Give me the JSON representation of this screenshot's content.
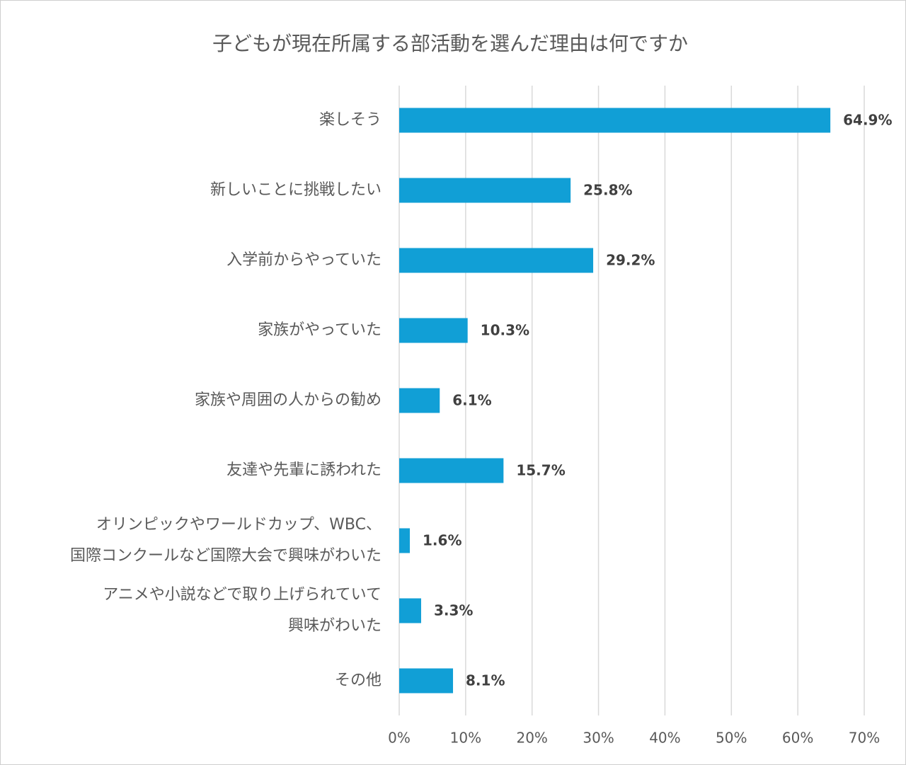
{
  "chart_data": {
    "type": "bar",
    "orientation": "horizontal",
    "title": "子どもが現在所属する部活動を選んだ理由は何ですか",
    "categories": [
      "楽しそう",
      "新しいことに挑戦したい",
      "入学前からやっていた",
      "家族がやっていた",
      "家族や周囲の人からの勧め",
      "友達や先輩に誘われた",
      "オリンピックやワールドカップ、WBC、\n国際コンクールなど国際大会で興味がわいた",
      "アニメや小説などで取り上げられていて\n興味がわいた",
      "その他"
    ],
    "values": [
      64.9,
      25.8,
      29.2,
      10.3,
      6.1,
      15.7,
      1.6,
      3.3,
      8.1
    ],
    "value_labels": [
      "64.9%",
      "25.8%",
      "29.2%",
      "10.3%",
      "6.1%",
      "15.7%",
      "1.6%",
      "3.3%",
      "8.1%"
    ],
    "color": "#119fd6",
    "xlim": [
      0,
      70
    ],
    "xticks": [
      {
        "value": 0,
        "label": "0%"
      },
      {
        "value": 10,
        "label": "10%"
      },
      {
        "value": 20,
        "label": "20%"
      },
      {
        "value": 30,
        "label": "30%"
      },
      {
        "value": 40,
        "label": "40%"
      },
      {
        "value": 50,
        "label": "50%"
      },
      {
        "value": 60,
        "label": "60%"
      },
      {
        "value": 70,
        "label": "70%"
      }
    ],
    "grid": true
  }
}
